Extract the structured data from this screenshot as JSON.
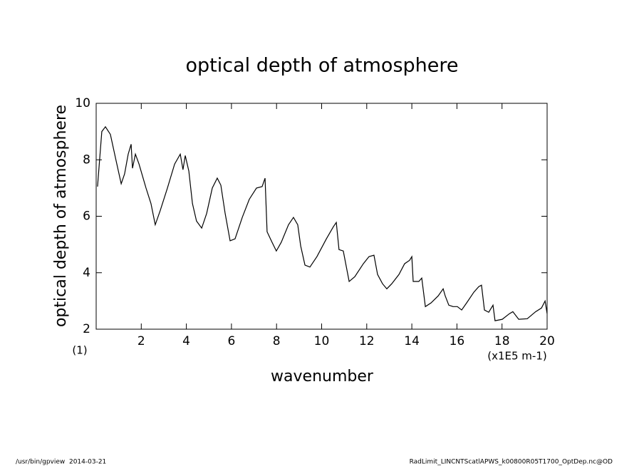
{
  "chart_data": {
    "type": "line",
    "title": "optical depth of atmosphere",
    "xlabel": "wavenumber",
    "ylabel": "optical depth of atmosphere",
    "xunit": "(x1E5 m-1)",
    "yunit": "(1)",
    "xlim": [
      0,
      20
    ],
    "xticks": [
      2,
      4,
      6,
      8,
      10,
      12,
      14,
      16,
      18,
      20
    ],
    "ylim": [
      2,
      10
    ],
    "yticks": [
      2,
      4,
      6,
      8,
      10
    ],
    "series": [
      {
        "name": "optical depth of atmosphere",
        "color": "#000000",
        "x": [
          0.06,
          0.25,
          0.41,
          0.63,
          0.88,
          1.11,
          1.26,
          1.42,
          1.55,
          1.61,
          1.74,
          1.9,
          2.21,
          2.43,
          2.62,
          2.84,
          3.16,
          3.48,
          3.73,
          3.85,
          3.95,
          4.11,
          4.27,
          4.45,
          4.68,
          4.9,
          5.15,
          5.37,
          5.53,
          5.72,
          5.94,
          6.16,
          6.48,
          6.79,
          7.11,
          7.36,
          7.49,
          7.58,
          7.8,
          7.99,
          8.21,
          8.53,
          8.75,
          8.94,
          9.07,
          9.26,
          9.48,
          9.79,
          10.21,
          10.52,
          10.65,
          10.77,
          10.96,
          11.22,
          11.47,
          11.85,
          12.1,
          12.32,
          12.48,
          12.7,
          12.89,
          13.11,
          13.43,
          13.68,
          13.9,
          14.0,
          14.06,
          14.31,
          14.44,
          14.6,
          14.85,
          15.17,
          15.39,
          15.48,
          15.64,
          15.83,
          16.02,
          16.21,
          16.43,
          16.75,
          16.97,
          17.09,
          17.22,
          17.41,
          17.6,
          17.69,
          18.01,
          18.33,
          18.48,
          18.74,
          19.12,
          19.49,
          19.75,
          19.91,
          20.0
        ],
        "values": [
          7.05,
          9.0,
          9.17,
          8.9,
          7.98,
          7.15,
          7.5,
          8.2,
          8.55,
          7.7,
          8.2,
          7.85,
          7.0,
          6.45,
          5.7,
          6.2,
          7.0,
          7.85,
          8.2,
          7.65,
          8.15,
          7.6,
          6.45,
          5.83,
          5.58,
          6.1,
          7.0,
          7.35,
          7.1,
          6.1,
          5.13,
          5.2,
          5.96,
          6.6,
          7.0,
          7.05,
          7.35,
          5.45,
          5.08,
          4.77,
          5.08,
          5.7,
          5.96,
          5.7,
          4.95,
          4.27,
          4.2,
          4.57,
          5.2,
          5.63,
          5.78,
          4.82,
          4.77,
          3.69,
          3.86,
          4.32,
          4.57,
          4.62,
          3.94,
          3.61,
          3.43,
          3.61,
          3.94,
          4.32,
          4.44,
          4.57,
          3.69,
          3.69,
          3.81,
          2.8,
          2.93,
          3.18,
          3.43,
          3.18,
          2.85,
          2.8,
          2.8,
          2.68,
          2.93,
          3.31,
          3.51,
          3.56,
          2.68,
          2.6,
          2.85,
          2.3,
          2.35,
          2.55,
          2.62,
          2.35,
          2.37,
          2.62,
          2.75,
          3.0,
          2.55
        ]
      }
    ]
  },
  "footer": {
    "left": "/usr/bin/gpview  2014-03-21",
    "right": "RadLimit_LINCNTScatlAPWS_k00800R05T1700_OptDep.nc@OD"
  }
}
